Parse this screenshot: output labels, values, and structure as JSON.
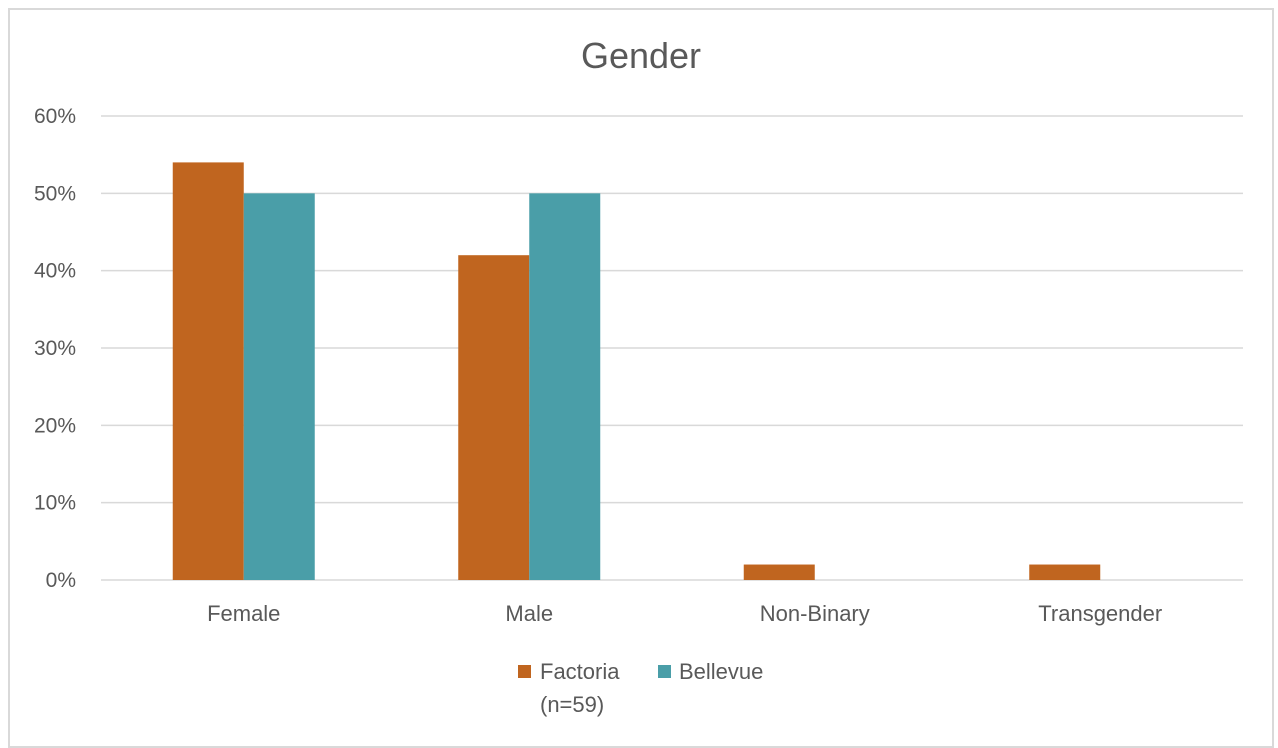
{
  "chart_data": {
    "type": "bar",
    "title": "Gender",
    "xlabel": "",
    "ylabel": "",
    "categories": [
      "Female",
      "Male",
      "Non-Binary",
      "Transgender"
    ],
    "series": [
      {
        "name": "Factoria (n=59)",
        "name_lines": [
          "Factoria",
          "(n=59)"
        ],
        "values": [
          0.54,
          0.42,
          0.02,
          0.02
        ],
        "color": "#c0651f"
      },
      {
        "name": "Bellevue",
        "name_lines": [
          "Bellevue"
        ],
        "values": [
          0.5,
          0.5,
          0,
          0
        ],
        "color": "#4a9ea8"
      }
    ],
    "ylim": [
      0,
      0.6
    ],
    "yticks": [
      0,
      0.1,
      0.2,
      0.3,
      0.4,
      0.5,
      0.6
    ],
    "ytick_labels": [
      "0%",
      "10%",
      "20%",
      "30%",
      "40%",
      "50%",
      "60%"
    ],
    "grid": true,
    "gridline_color": "#d9d9d9",
    "legend_position": "bottom"
  }
}
